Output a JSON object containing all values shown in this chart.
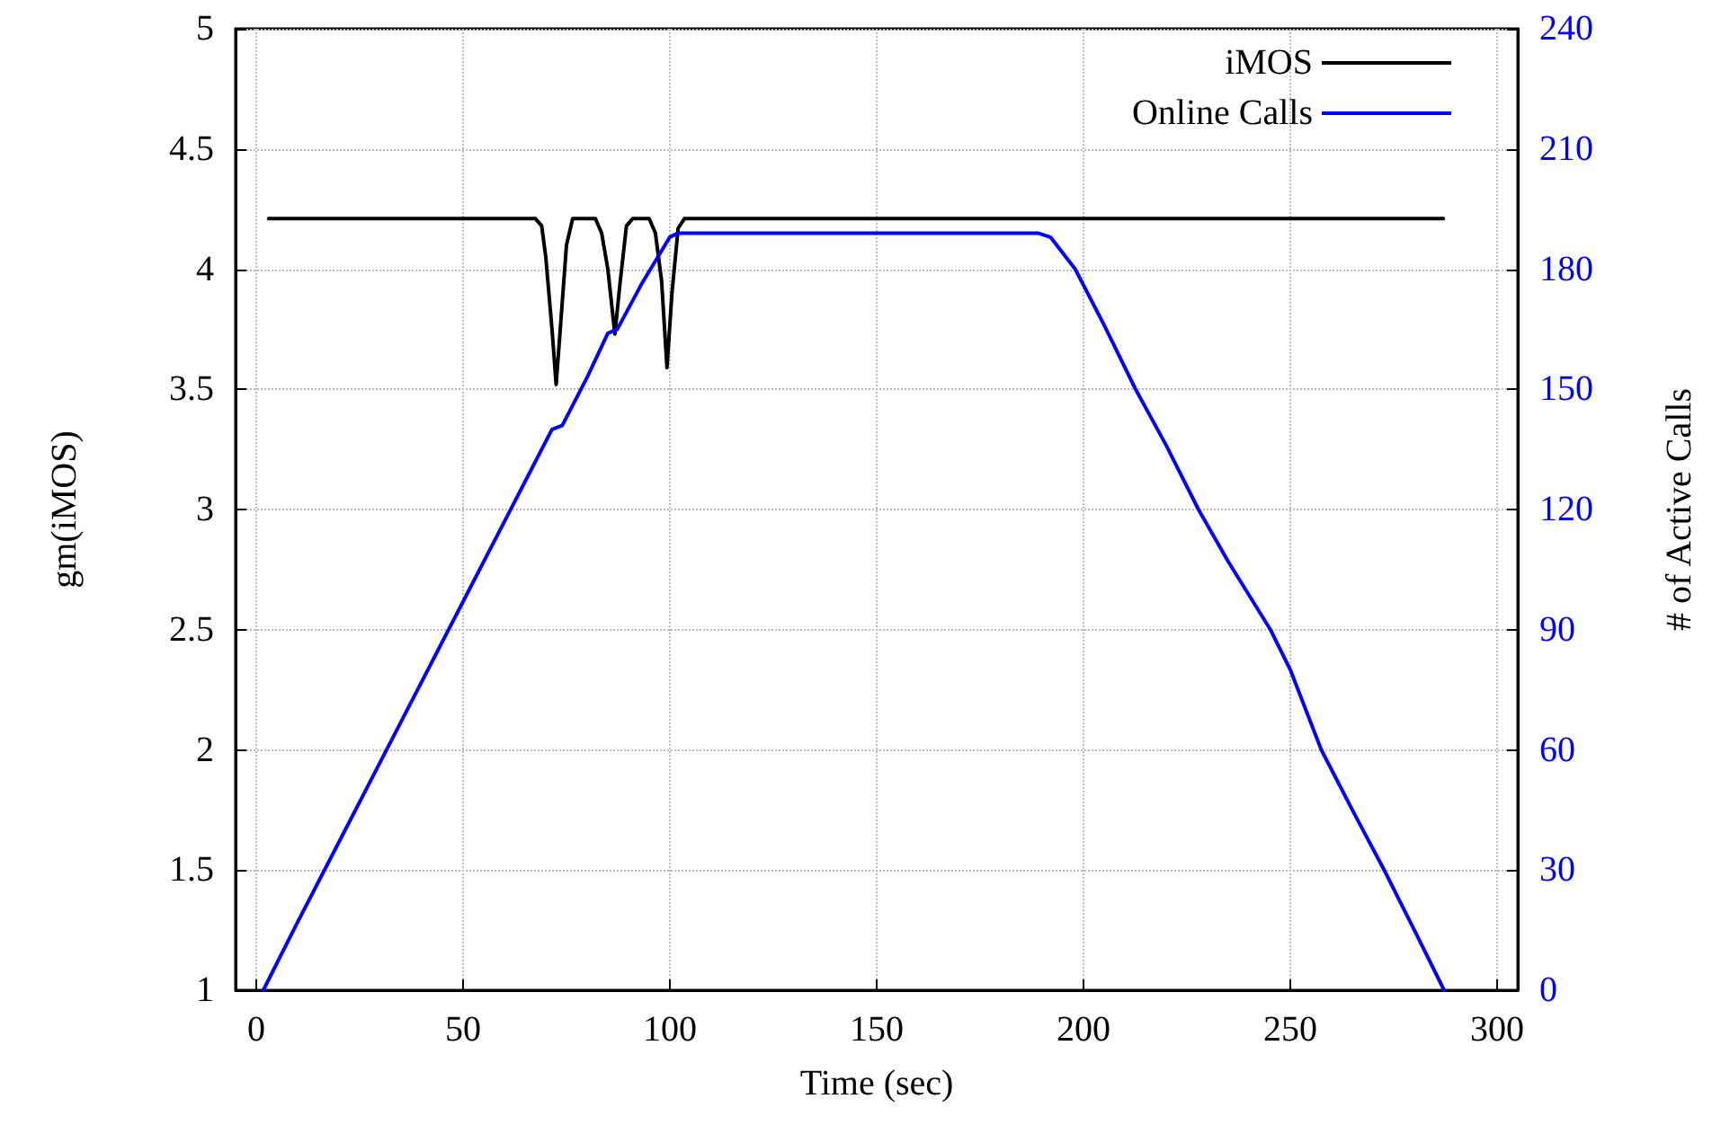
{
  "chart_data": {
    "type": "line",
    "xlabel": "Time (sec)",
    "ylabel": "gm(iMOS)",
    "y2label": "# of Active Calls",
    "xlim": [
      -5,
      305
    ],
    "xticks": [
      0,
      50,
      100,
      150,
      200,
      250,
      300
    ],
    "ylim": [
      1,
      5
    ],
    "yticks": [
      1,
      1.5,
      2,
      2.5,
      3,
      3.5,
      4,
      4.5,
      5
    ],
    "y2lim": [
      0,
      240
    ],
    "y2ticks": [
      0,
      30,
      60,
      90,
      120,
      150,
      180,
      210,
      240
    ],
    "grid": true,
    "legend": "top right",
    "marker": "none",
    "line_style": "solid",
    "series": [
      {
        "name": "iMOS",
        "color": "#000000",
        "x": [
          3,
          67.5,
          69,
          70,
          71.5,
          72.5,
          73.5,
          75,
          76.5,
          82,
          83.5,
          85,
          86.7,
          88,
          89.5,
          91,
          95,
          96.5,
          98,
          99.3,
          100.5,
          102,
          103.5,
          287
        ],
        "values": [
          4.21,
          4.21,
          4.18,
          4.05,
          3.75,
          3.52,
          3.75,
          4.1,
          4.21,
          4.21,
          4.15,
          4.0,
          3.73,
          3.95,
          4.18,
          4.21,
          4.21,
          4.15,
          3.95,
          3.59,
          3.9,
          4.17,
          4.21,
          4.21
        ]
      },
      {
        "name": "Online Calls",
        "color": "#0000ff",
        "axis": "y2",
        "x": [
          1.7,
          10,
          20,
          30,
          40,
          50,
          60,
          67,
          71.5,
          74,
          80,
          85,
          87.3,
          93,
          100,
          102,
          189,
          192,
          198,
          205,
          212.6,
          220,
          227.8,
          235,
          245.2,
          250,
          257.5,
          265,
          272.7,
          280,
          287.2
        ],
        "values": [
          0,
          17,
          37,
          57,
          77,
          97,
          117,
          131,
          140,
          141,
          153,
          164,
          165,
          176,
          188,
          189,
          189,
          188,
          180,
          166,
          150,
          136,
          120,
          107,
          90,
          80,
          60,
          45,
          30,
          15,
          0
        ]
      }
    ]
  }
}
